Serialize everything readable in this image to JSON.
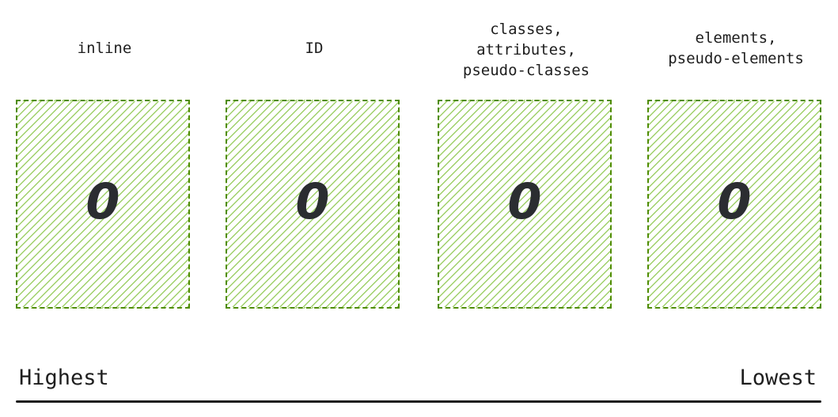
{
  "columns": [
    {
      "label": "inline",
      "value": "0"
    },
    {
      "label": "ID",
      "value": "0"
    },
    {
      "label": "classes,\nattributes,\npseudo-classes",
      "value": "0"
    },
    {
      "label": "elements,\npseudo-elements",
      "value": "0"
    }
  ],
  "scale": {
    "highest": "Highest",
    "lowest": "Lowest"
  },
  "colors": {
    "box_border": "#4f8c00",
    "hatch": "#9fd06a",
    "text": "#1e1e1e"
  }
}
